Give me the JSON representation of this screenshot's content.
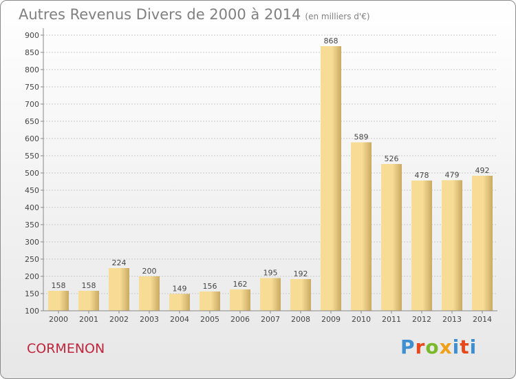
{
  "title": "Autres Revenus Divers de 2000 à 2014",
  "subtitle": "(en milliers d'€)",
  "commune": "CORMENON",
  "brand": [
    "P",
    "r",
    "o",
    "x",
    "i",
    "t",
    "i"
  ],
  "colors": {
    "bar_light": "#f7dc96",
    "bar_dark": "#c9aa62",
    "grid": "#c9c9c9",
    "axis": "#888888",
    "text": "#444444",
    "title": "#808080",
    "commune": "#c0243c"
  },
  "chart_data": {
    "type": "bar",
    "categories": [
      "2000",
      "2001",
      "2002",
      "2003",
      "2004",
      "2005",
      "2006",
      "2007",
      "2008",
      "2009",
      "2010",
      "2011",
      "2012",
      "2013",
      "2014"
    ],
    "values": [
      158,
      158,
      224,
      200,
      149,
      156,
      162,
      195,
      192,
      868,
      589,
      526,
      478,
      479,
      492
    ],
    "ylim": [
      100,
      900
    ],
    "yticks": [
      100,
      150,
      200,
      250,
      300,
      350,
      400,
      450,
      500,
      550,
      600,
      650,
      700,
      750,
      800,
      850,
      900
    ],
    "grid": true,
    "data_labels": true
  }
}
